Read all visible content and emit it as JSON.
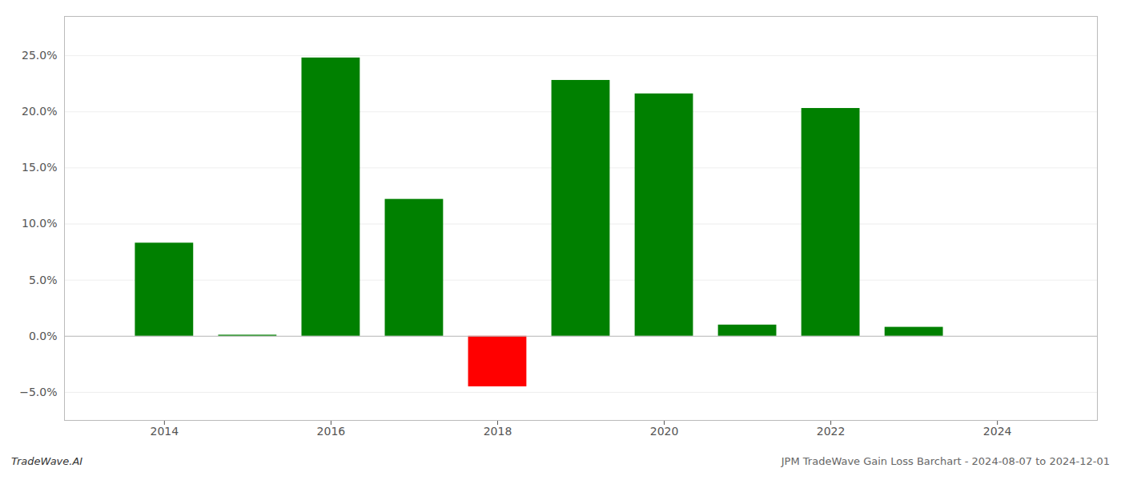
{
  "chart_data": {
    "type": "bar",
    "x": [
      2014,
      2015,
      2016,
      2017,
      2018,
      2019,
      2020,
      2021,
      2022,
      2023
    ],
    "values": [
      0.083,
      0.001,
      0.248,
      0.122,
      -0.045,
      0.228,
      0.216,
      0.01,
      0.203,
      0.008
    ],
    "colors": [
      "#008000",
      "#008000",
      "#008000",
      "#008000",
      "#ff0000",
      "#008000",
      "#008000",
      "#008000",
      "#008000",
      "#008000"
    ],
    "xlim": [
      2012.8,
      2025.2
    ],
    "xticks": [
      2014,
      2016,
      2018,
      2020,
      2022,
      2024
    ],
    "ylim": [
      -0.075,
      0.285
    ],
    "yticks": [
      {
        "value": -0.05,
        "label": "−5.0%"
      },
      {
        "value": 0.0,
        "label": "0.0%"
      },
      {
        "value": 0.05,
        "label": "5.0%"
      },
      {
        "value": 0.1,
        "label": "10.0%"
      },
      {
        "value": 0.15,
        "label": "15.0%"
      },
      {
        "value": 0.2,
        "label": "20.0%"
      },
      {
        "value": 0.25,
        "label": "25.0%"
      }
    ],
    "grid": true,
    "annotations": [
      "TradeWave.AI",
      "JPM TradeWave Gain Loss Barchart - 2024-08-07 to 2024-12-01"
    ]
  }
}
